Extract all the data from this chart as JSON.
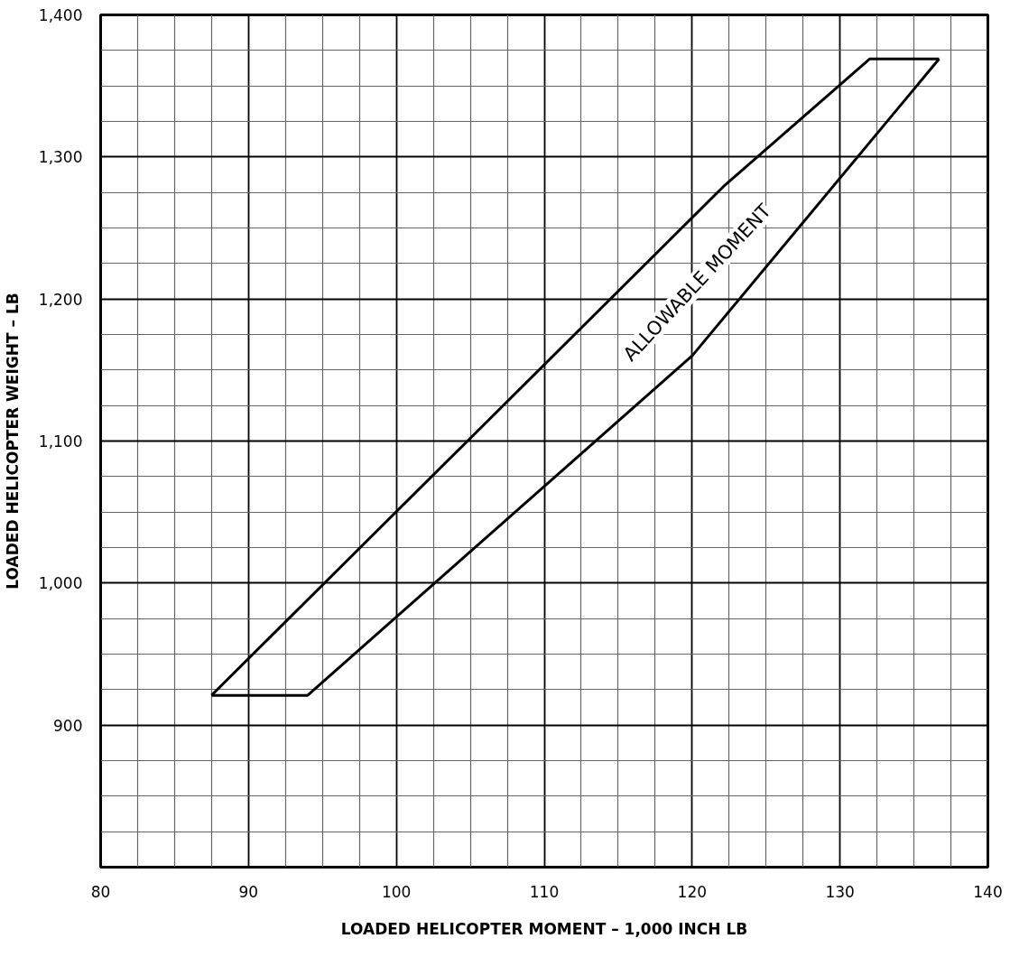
{
  "chart_data": {
    "type": "line",
    "xlabel": "LOADED HELICOPTER MOMENT – 1,000 INCH LB",
    "ylabel": "LOADED HELICOPTER WEIGHT – LB",
    "series": [
      {
        "color": "#000000",
        "x": [
          87.5,
          122.2,
          132,
          136.7
        ],
        "values": [
          921,
          1280,
          1369,
          1369
        ]
      },
      {
        "color": "#000000",
        "x": [
          87.5,
          94,
          120,
          136.7
        ],
        "values": [
          921,
          921,
          1160,
          1369
        ]
      }
    ],
    "xlim": [
      80,
      140
    ],
    "ylim": [
      800,
      1400
    ],
    "xticks": [
      80,
      {
        "value": 82.5,
        "label": null
      },
      {
        "value": 85,
        "label": null
      },
      {
        "value": 87.5,
        "label": null
      },
      90,
      {
        "value": 92.5,
        "label": null
      },
      {
        "value": 95,
        "label": null
      },
      {
        "value": 97.5,
        "label": null
      },
      100,
      {
        "value": 102.5,
        "label": null
      },
      {
        "value": 105,
        "label": null
      },
      {
        "value": 107.5,
        "label": null
      },
      110,
      {
        "value": 112.5,
        "label": null
      },
      {
        "value": 115,
        "label": null
      },
      {
        "value": 117.5,
        "label": null
      },
      120,
      {
        "value": 122.5,
        "label": null
      },
      {
        "value": 125,
        "label": null
      },
      {
        "value": 127.5,
        "label": null
      },
      130,
      {
        "value": 132.5,
        "label": null
      },
      {
        "value": 135,
        "label": null
      },
      {
        "value": 137.5,
        "label": null
      },
      140
    ],
    "yticks": [
      {
        "value": 800,
        "label": null
      },
      {
        "value": 825,
        "label": null
      },
      {
        "value": 850,
        "label": null
      },
      {
        "value": 875,
        "label": null
      },
      {
        "value": 900,
        "label": "900"
      },
      {
        "value": 925,
        "label": null
      },
      {
        "value": 950,
        "label": null
      },
      {
        "value": 975,
        "label": null
      },
      {
        "value": 1000,
        "label": "1,000"
      },
      {
        "value": 1025,
        "label": null
      },
      {
        "value": 1050,
        "label": null
      },
      {
        "value": 1075,
        "label": null
      },
      {
        "value": 1100,
        "label": "1,100"
      },
      {
        "value": 1125,
        "label": null
      },
      {
        "value": 1150,
        "label": null
      },
      {
        "value": 1175,
        "label": null
      },
      {
        "value": 1200,
        "label": "1,200"
      },
      {
        "value": 1225,
        "label": null
      },
      {
        "value": 1250,
        "label": null
      },
      {
        "value": 1275,
        "label": null
      },
      {
        "value": 1300,
        "label": "1,300"
      },
      {
        "value": 1325,
        "label": null
      },
      {
        "value": 1350,
        "label": null
      },
      {
        "value": 1375,
        "label": null
      },
      {
        "value": 1400,
        "label": "1,400"
      }
    ],
    "grid": true,
    "marker": "none",
    "line_style": "solid",
    "annotations": [
      "ALLOWABLE MOMENT"
    ]
  }
}
